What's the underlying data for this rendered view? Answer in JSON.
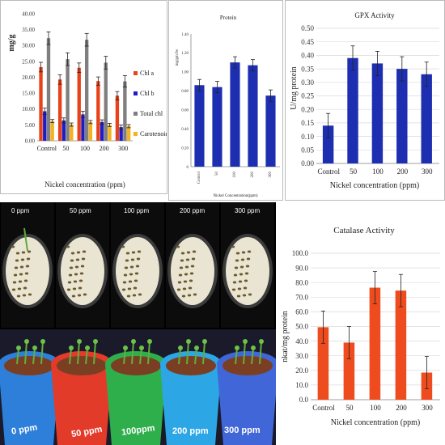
{
  "chart_data": [
    {
      "type": "bar",
      "id": "chlorophyll",
      "title": "",
      "xlabel": "Nickel concentration (ppm)",
      "ylabel": "mg/g",
      "categories": [
        "Control",
        "50",
        "100",
        "200",
        "300"
      ],
      "ylim": [
        0,
        40
      ],
      "yticks": [
        "0.00",
        "5.00",
        "10.00",
        "15.00",
        "20.00",
        "25.00",
        "30.00",
        "35.00",
        "40.00"
      ],
      "legend": "right",
      "series": [
        {
          "name": "Chl a",
          "color": "#e8421b",
          "values": [
            23.2,
            19.3,
            23.0,
            18.8,
            14.2
          ],
          "errors": [
            1.5,
            1.5,
            1.5,
            1.3,
            1.3
          ]
        },
        {
          "name": "Chl b",
          "color": "#1d1dc8",
          "values": [
            9.3,
            6.4,
            8.3,
            5.9,
            4.3
          ],
          "errors": [
            1.0,
            0.8,
            1.0,
            0.7,
            0.7
          ]
        },
        {
          "name": "Total chl",
          "color": "#7f7f7f",
          "values": [
            32.3,
            25.7,
            31.8,
            24.6,
            18.7
          ],
          "errors": [
            2.0,
            2.0,
            2.0,
            2.0,
            1.8
          ]
        },
        {
          "name": "Carotenoid",
          "color": "#f4b120",
          "values": [
            6.2,
            5.1,
            5.9,
            5.0,
            4.6
          ],
          "errors": [
            0.5,
            0.5,
            0.5,
            0.5,
            0.5
          ]
        }
      ]
    },
    {
      "type": "bar",
      "id": "protein",
      "title": "Protein",
      "xlabel": "Nickel Concentration(ppm)",
      "ylabel": "mg/gm fw",
      "categories": [
        "Control",
        "50",
        "100",
        "200",
        "300"
      ],
      "ylim": [
        0,
        1.4
      ],
      "yticks": [
        "0",
        "0.20",
        "0.40",
        "0.60",
        "0.80",
        "1.00",
        "1.20",
        "1.40"
      ],
      "series": [
        {
          "name": "",
          "color": "#1d2fb0",
          "values": [
            0.86,
            0.84,
            1.1,
            1.07,
            0.75
          ],
          "errors": [
            0.06,
            0.06,
            0.06,
            0.06,
            0.06
          ]
        }
      ]
    },
    {
      "type": "bar",
      "id": "gpx",
      "title": "GPX Activity",
      "xlabel": "Nickel  concentration (ppm)",
      "ylabel": "U/mg  protein",
      "categories": [
        "Control",
        "50",
        "100",
        "200",
        "300"
      ],
      "ylim": [
        0,
        0.5
      ],
      "yticks": [
        "0.00",
        "0.05",
        "0.10",
        "0.15",
        "0.20",
        "0.25",
        "0.30",
        "0.35",
        "0.40",
        "0.45",
        "0.50"
      ],
      "series": [
        {
          "name": "",
          "color": "#1d2fb0",
          "values": [
            0.14,
            0.39,
            0.37,
            0.35,
            0.33
          ],
          "errors": [
            0.045,
            0.045,
            0.045,
            0.045,
            0.045
          ]
        }
      ]
    },
    {
      "type": "bar",
      "id": "catalase",
      "title": "Catalase Activity",
      "xlabel": "Nickel concentration (ppm)",
      "ylabel": "nkat/mg protein",
      "categories": [
        "Control",
        "50",
        "100",
        "200",
        "300"
      ],
      "ylim": [
        0,
        100
      ],
      "yticks": [
        "0.0",
        "10.0",
        "20.0",
        "30.0",
        "40.0",
        "50.0",
        "60.0",
        "70.0",
        "80.0",
        "90.0",
        "100.0"
      ],
      "series": [
        {
          "name": "",
          "color": "#ee4b1e",
          "values": [
            49.5,
            39.0,
            76.5,
            74.5,
            18.5
          ],
          "errors": [
            11,
            11,
            11,
            11,
            11
          ]
        }
      ]
    }
  ],
  "photo": {
    "petri_labels": [
      "0 ppm",
      "50 ppm",
      "100 ppm",
      "200 ppm",
      "300 ppm"
    ],
    "bucket_labels": [
      "0 ppm",
      "50 ppm",
      "100ppm",
      "200 ppm",
      "300 ppm"
    ],
    "bucket_colors": [
      "#2d7fd9",
      "#e23b2a",
      "#2fae4c",
      "#2da6e6",
      "#4166d8"
    ]
  }
}
